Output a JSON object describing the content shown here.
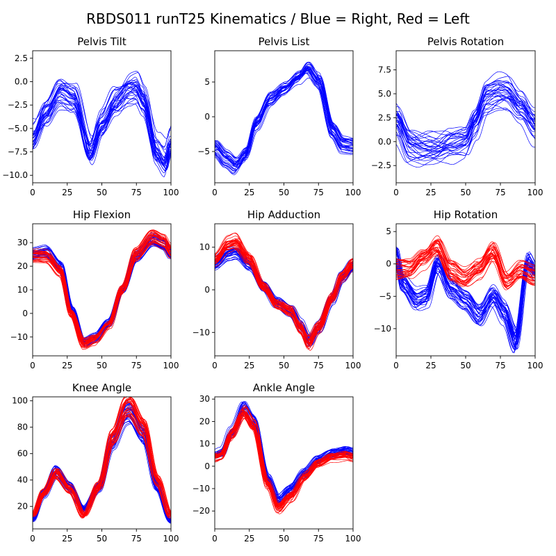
{
  "figure_title": "RBDS011 runT25 Kinematics / Blue = Right, Red = Left",
  "colors": {
    "right": "#0000ff",
    "left": "#ff0000"
  },
  "chart_data": [
    {
      "type": "line",
      "title": "Pelvis Tilt",
      "xlim": [
        0,
        100
      ],
      "ylim": [
        -10.8,
        3.3
      ],
      "xticks": [
        0,
        25,
        50,
        75,
        100
      ],
      "xtick_labels": [
        "0",
        "25",
        "50",
        "75",
        "100"
      ],
      "yticks": [
        2.5,
        0.0,
        -2.5,
        -5.0,
        -7.5,
        -10.0
      ],
      "ytick_labels": [
        "2.5",
        "0.0",
        "−2.5",
        "−5.0",
        "−7.5",
        "−10.0"
      ],
      "series": [
        {
          "name": "Right",
          "color": "#0000ff",
          "n_trials": 30,
          "spread": 1.6,
          "x": [
            0,
            10,
            20,
            30,
            42,
            50,
            60,
            70,
            75,
            80,
            90,
            96,
            100
          ],
          "mean": [
            -6.0,
            -3.2,
            -1.0,
            -1.8,
            -7.5,
            -4.5,
            -2.0,
            -0.8,
            -0.7,
            -2.0,
            -7.5,
            -8.5,
            -6.5
          ]
        }
      ]
    },
    {
      "type": "line",
      "title": "Pelvis List",
      "xlim": [
        0,
        100
      ],
      "ylim": [
        -9.5,
        9.5
      ],
      "xticks": [
        0,
        25,
        50,
        75,
        100
      ],
      "xtick_labels": [
        "0",
        "25",
        "50",
        "75",
        "100"
      ],
      "yticks": [
        5,
        0,
        -5
      ],
      "ytick_labels": [
        "5",
        "0",
        "−5"
      ],
      "series": [
        {
          "name": "Right",
          "color": "#0000ff",
          "n_trials": 30,
          "spread": 0.8,
          "x": [
            0,
            8,
            15,
            22,
            30,
            40,
            50,
            60,
            67,
            75,
            85,
            92,
            100
          ],
          "mean": [
            -4.5,
            -6.0,
            -7.0,
            -5.5,
            -1.0,
            2.5,
            4.0,
            5.5,
            6.8,
            5.0,
            -2.0,
            -4.0,
            -4.2
          ]
        }
      ]
    },
    {
      "type": "line",
      "title": "Pelvis Rotation",
      "xlim": [
        0,
        100
      ],
      "ylim": [
        -4.3,
        9.5
      ],
      "xticks": [
        0,
        25,
        50,
        75,
        100
      ],
      "xtick_labels": [
        "0",
        "25",
        "50",
        "75",
        "100"
      ],
      "yticks": [
        7.5,
        5.0,
        2.5,
        0.0,
        -2.5
      ],
      "ytick_labels": [
        "7.5",
        "5.0",
        "2.5",
        "0.0",
        "−2.5"
      ],
      "series": [
        {
          "name": "Right",
          "color": "#0000ff",
          "n_trials": 30,
          "spread": 1.4,
          "x": [
            0,
            10,
            20,
            30,
            40,
            50,
            57,
            65,
            75,
            80,
            90,
            100
          ],
          "mean": [
            2.0,
            -0.5,
            -0.8,
            -1.0,
            -0.5,
            0.0,
            2.0,
            4.5,
            5.0,
            5.0,
            3.5,
            1.5
          ]
        }
      ]
    },
    {
      "type": "line",
      "title": "Hip Flexion",
      "xlim": [
        0,
        100
      ],
      "ylim": [
        -18,
        38
      ],
      "xticks": [
        0,
        25,
        50,
        75,
        100
      ],
      "xtick_labels": [
        "0",
        "25",
        "50",
        "75",
        "100"
      ],
      "yticks": [
        30,
        20,
        10,
        0,
        -10
      ],
      "ytick_labels": [
        "30",
        "20",
        "10",
        "0",
        "−10"
      ],
      "series": [
        {
          "name": "Right",
          "color": "#0000ff",
          "n_trials": 30,
          "spread": 1.0,
          "x": [
            0,
            10,
            20,
            28,
            37,
            45,
            55,
            65,
            75,
            87,
            95,
            100
          ],
          "mean": [
            25.0,
            26.0,
            20.0,
            2.0,
            -12.0,
            -10.0,
            -4.0,
            10.0,
            24.0,
            31.0,
            29.0,
            25.0
          ]
        },
        {
          "name": "Left",
          "color": "#ff0000",
          "n_trials": 30,
          "spread": 1.2,
          "x": [
            0,
            10,
            20,
            28,
            37,
            45,
            55,
            65,
            75,
            87,
            95,
            100
          ],
          "mean": [
            24.0,
            24.0,
            18.0,
            0.0,
            -13.0,
            -11.0,
            -5.0,
            10.0,
            25.0,
            32.0,
            30.0,
            26.0
          ]
        }
      ]
    },
    {
      "type": "line",
      "title": "Hip Adduction",
      "xlim": [
        0,
        100
      ],
      "ylim": [
        -15.5,
        15.5
      ],
      "xticks": [
        0,
        25,
        50,
        75,
        100
      ],
      "xtick_labels": [
        "0",
        "25",
        "50",
        "75",
        "100"
      ],
      "yticks": [
        10,
        0,
        -10
      ],
      "ytick_labels": [
        "10",
        "0",
        "−10"
      ],
      "series": [
        {
          "name": "Right",
          "color": "#0000ff",
          "n_trials": 30,
          "spread": 1.0,
          "x": [
            0,
            10,
            15,
            25,
            35,
            45,
            55,
            62,
            68,
            75,
            85,
            92,
            100
          ],
          "mean": [
            6.0,
            8.5,
            9.0,
            6.0,
            1.0,
            -3.0,
            -5.0,
            -8.5,
            -12.0,
            -9.0,
            -2.0,
            3.0,
            5.5
          ]
        },
        {
          "name": "Left",
          "color": "#ff0000",
          "n_trials": 30,
          "spread": 1.0,
          "x": [
            0,
            10,
            15,
            25,
            35,
            45,
            55,
            62,
            68,
            75,
            85,
            92,
            100
          ],
          "mean": [
            7.0,
            10.5,
            11.0,
            7.0,
            0.5,
            -3.5,
            -5.0,
            -9.0,
            -12.5,
            -9.0,
            -2.0,
            3.0,
            6.0
          ]
        }
      ]
    },
    {
      "type": "line",
      "title": "Hip Rotation",
      "xlim": [
        0,
        100
      ],
      "ylim": [
        -14.2,
        6.2
      ],
      "xticks": [
        0,
        25,
        50,
        75,
        100
      ],
      "xtick_labels": [
        "0",
        "25",
        "50",
        "75",
        "100"
      ],
      "yticks": [
        5,
        0,
        -5,
        -10
      ],
      "ytick_labels": [
        "5",
        "0",
        "−5",
        "−10"
      ],
      "series": [
        {
          "name": "Right",
          "color": "#0000ff",
          "n_trials": 30,
          "spread": 1.2,
          "x": [
            0,
            5,
            15,
            22,
            30,
            40,
            50,
            60,
            70,
            78,
            86,
            95,
            100
          ],
          "mean": [
            1.5,
            -3.0,
            -5.5,
            -5.0,
            0.0,
            -4.0,
            -5.5,
            -8.0,
            -5.0,
            -7.5,
            -12.0,
            0.5,
            -1.0
          ]
        },
        {
          "name": "Left",
          "color": "#ff0000",
          "n_trials": 30,
          "spread": 1.3,
          "x": [
            0,
            10,
            20,
            30,
            40,
            50,
            60,
            70,
            80,
            90,
            100
          ],
          "mean": [
            -1.0,
            -1.0,
            1.0,
            3.0,
            -1.0,
            -2.5,
            -1.0,
            2.0,
            -2.5,
            -1.0,
            -2.0
          ]
        }
      ]
    },
    {
      "type": "line",
      "title": "Knee Angle",
      "xlim": [
        0,
        100
      ],
      "ylim": [
        3,
        103
      ],
      "xticks": [
        0,
        25,
        50,
        75,
        100
      ],
      "xtick_labels": [
        "0",
        "25",
        "50",
        "75",
        "100"
      ],
      "yticks": [
        100,
        80,
        60,
        40,
        20
      ],
      "ytick_labels": [
        "100",
        "80",
        "60",
        "40",
        "20"
      ],
      "series": [
        {
          "name": "Right",
          "color": "#0000ff",
          "n_trials": 30,
          "spread": 1.2,
          "x": [
            0,
            8,
            17,
            27,
            37,
            48,
            58,
            68,
            70,
            80,
            90,
            100
          ],
          "mean": [
            10.0,
            30.0,
            47.0,
            35.0,
            18.0,
            35.0,
            70.0,
            91.0,
            92.0,
            75.0,
            35.0,
            9.0
          ]
        },
        {
          "name": "Left",
          "color": "#ff0000",
          "n_trials": 30,
          "spread": 1.2,
          "x": [
            0,
            8,
            17,
            27,
            37,
            48,
            58,
            68,
            70,
            80,
            90,
            100
          ],
          "mean": [
            13.0,
            30.0,
            45.0,
            33.0,
            13.0,
            35.0,
            72.0,
            95.0,
            96.0,
            80.0,
            40.0,
            13.0
          ]
        }
      ]
    },
    {
      "type": "line",
      "title": "Ankle Angle",
      "xlim": [
        0,
        100
      ],
      "ylim": [
        -28,
        31
      ],
      "xticks": [
        0,
        25,
        50,
        75,
        100
      ],
      "xtick_labels": [
        "0",
        "25",
        "50",
        "75",
        "100"
      ],
      "yticks": [
        30,
        20,
        10,
        0,
        -10,
        -20
      ],
      "ytick_labels": [
        "30",
        "20",
        "10",
        "0",
        "−10",
        "−20"
      ],
      "series": [
        {
          "name": "Right",
          "color": "#0000ff",
          "n_trials": 30,
          "spread": 1.5,
          "x": [
            0,
            5,
            12,
            21,
            28,
            38,
            46,
            55,
            65,
            75,
            85,
            95,
            100
          ],
          "mean": [
            5.0,
            6.0,
            15.0,
            26.0,
            20.0,
            -5.0,
            -15.0,
            -10.0,
            -3.0,
            3.0,
            6.0,
            7.0,
            6.0
          ]
        },
        {
          "name": "Left",
          "color": "#ff0000",
          "n_trials": 30,
          "spread": 1.8,
          "x": [
            0,
            5,
            12,
            21,
            28,
            38,
            46,
            55,
            65,
            75,
            85,
            95,
            100
          ],
          "mean": [
            4.0,
            5.0,
            14.0,
            24.0,
            18.0,
            -8.0,
            -19.0,
            -14.0,
            -5.0,
            1.0,
            4.0,
            5.0,
            4.0
          ]
        }
      ]
    }
  ]
}
